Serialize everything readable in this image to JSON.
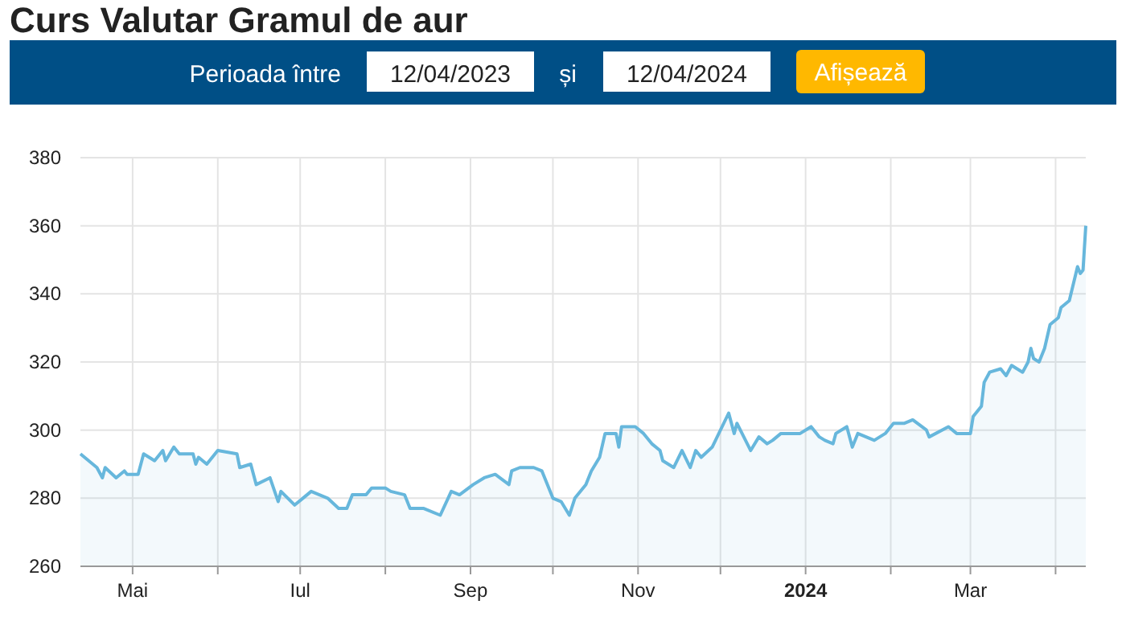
{
  "chart_data": {
    "type": "area",
    "title": "Curs Valutar Gramul de aur",
    "annotations": [
      "Perioada între",
      "12/04/2023",
      "și",
      "12/04/2024",
      "Afișează"
    ],
    "x": [
      "2023-04-12",
      "2023-04-18",
      "2023-04-20",
      "2023-04-21",
      "2023-04-25",
      "2023-04-28",
      "2023-04-29",
      "2023-05-03",
      "2023-05-05",
      "2023-05-09",
      "2023-05-12",
      "2023-05-13",
      "2023-05-16",
      "2023-05-18",
      "2023-05-23",
      "2023-05-24",
      "2023-05-25",
      "2023-05-28",
      "2023-06-01",
      "2023-06-08",
      "2023-06-09",
      "2023-06-13",
      "2023-06-15",
      "2023-06-20",
      "2023-06-23",
      "2023-06-24",
      "2023-06-29",
      "2023-07-02",
      "2023-07-05",
      "2023-07-11",
      "2023-07-15",
      "2023-07-18",
      "2023-07-20",
      "2023-07-25",
      "2023-07-27",
      "2023-08-01",
      "2023-08-03",
      "2023-08-08",
      "2023-08-10",
      "2023-08-15",
      "2023-08-21",
      "2023-08-25",
      "2023-08-28",
      "2023-09-02",
      "2023-09-06",
      "2023-09-10",
      "2023-09-15",
      "2023-09-16",
      "2023-09-19",
      "2023-09-24",
      "2023-09-27",
      "2023-10-01",
      "2023-10-04",
      "2023-10-07",
      "2023-10-09",
      "2023-10-13",
      "2023-10-15",
      "2023-10-18",
      "2023-10-20",
      "2023-10-24",
      "2023-10-25",
      "2023-10-26",
      "2023-10-31",
      "2023-11-03",
      "2023-11-06",
      "2023-11-09",
      "2023-11-10",
      "2023-11-14",
      "2023-11-17",
      "2023-11-20",
      "2023-11-22",
      "2023-11-24",
      "2023-11-28",
      "2023-12-04",
      "2023-12-06",
      "2023-12-07",
      "2023-12-12",
      "2023-12-15",
      "2023-12-18",
      "2023-12-20",
      "2023-12-23",
      "2023-12-30",
      "2024-01-03",
      "2024-01-06",
      "2024-01-08",
      "2024-01-11",
      "2024-01-12",
      "2024-01-16",
      "2024-01-18",
      "2024-01-20",
      "2024-01-26",
      "2024-01-30",
      "2024-02-02",
      "2024-02-06",
      "2024-02-09",
      "2024-02-14",
      "2024-02-15",
      "2024-02-22",
      "2024-02-25",
      "2024-03-01",
      "2024-03-02",
      "2024-03-05",
      "2024-03-06",
      "2024-03-08",
      "2024-03-12",
      "2024-03-14",
      "2024-03-16",
      "2024-03-20",
      "2024-03-22",
      "2024-03-23",
      "2024-03-24",
      "2024-03-26",
      "2024-03-28",
      "2024-03-30",
      "2024-04-02",
      "2024-04-03",
      "2024-04-06",
      "2024-04-09",
      "2024-04-10",
      "2024-04-11",
      "2024-04-12"
    ],
    "series": [
      {
        "color": "#67b7dc",
        "values": [
          293,
          289,
          286,
          289,
          286,
          288,
          287,
          287,
          293,
          291,
          294,
          291,
          295,
          293,
          293,
          290,
          292,
          290,
          294,
          293,
          289,
          290,
          284,
          286,
          279,
          282,
          278,
          280,
          282,
          280,
          277,
          277,
          281,
          281,
          283,
          283,
          282,
          281,
          277,
          277,
          275,
          282,
          281,
          284,
          286,
          287,
          284,
          288,
          289,
          289,
          288,
          280,
          279,
          275,
          280,
          284,
          288,
          292,
          299,
          299,
          295,
          301,
          301,
          299,
          296,
          294,
          291,
          289,
          294,
          289,
          294,
          292,
          295,
          305,
          299,
          302,
          294,
          298,
          296,
          297,
          299,
          299,
          301,
          298,
          297,
          296,
          299,
          301,
          295,
          299,
          297,
          299,
          302,
          302,
          303,
          300,
          298,
          301,
          299,
          299,
          304,
          307,
          314,
          317,
          318,
          316,
          319,
          317,
          320,
          324,
          321,
          320,
          324,
          331,
          333,
          336,
          338,
          348,
          346,
          347,
          360
        ]
      }
    ],
    "ylim": [
      260,
      380
    ],
    "yticks": [
      260,
      280,
      300,
      320,
      340,
      360,
      380
    ],
    "xlim": [
      "2023-04-12",
      "2024-04-12"
    ],
    "xticks": [
      {
        "value": "2023-05-01",
        "label": "Mai"
      },
      {
        "value": "2023-06-01",
        "label": null
      },
      {
        "value": "2023-07-01",
        "label": "Iul"
      },
      {
        "value": "2023-08-01",
        "label": null
      },
      {
        "value": "2023-09-01",
        "label": "Sep"
      },
      {
        "value": "2023-10-01",
        "label": null
      },
      {
        "value": "2023-11-01",
        "label": "Nov"
      },
      {
        "value": "2023-12-01",
        "label": null
      },
      {
        "value": "2024-01-01",
        "label": "2024"
      },
      {
        "value": "2024-02-01",
        "label": null
      },
      {
        "value": "2024-03-01",
        "label": "Mar"
      },
      {
        "value": "2024-04-01",
        "label": null
      }
    ],
    "grid": true,
    "marker": "none",
    "line_style": "solid"
  }
}
